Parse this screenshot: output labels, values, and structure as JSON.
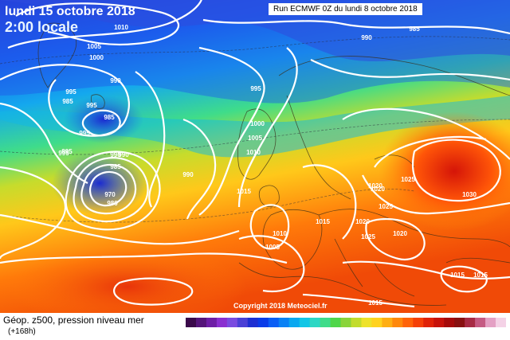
{
  "header": {
    "date": "lundi 15 octobre 2018",
    "time": "2:00 locale",
    "run": "Run ECMWF 0Z du lundi 8 octobre 2018"
  },
  "copyright": "Copyright 2018 Meteociel.fr",
  "legend": {
    "title": "Géop. z500, pression niveau mer",
    "subtitle": "(+168h)"
  },
  "isobar_labels": [
    "1010",
    "1005",
    "1000",
    "990",
    "995",
    "985",
    "995",
    "990",
    "985",
    "995",
    "990",
    "995",
    "985",
    "990",
    "970",
    "980",
    "995",
    "1000",
    "1005",
    "1010",
    "1015",
    "990",
    "985",
    "995",
    "1020",
    "1025",
    "1030",
    "1020",
    "1025",
    "1020",
    "1010",
    "1005",
    "1015",
    "1020",
    "1025",
    "1015",
    "1015",
    "1015"
  ],
  "colors": {
    "legend_scale": [
      "#3a0a4a",
      "#55157a",
      "#6e1ea6",
      "#8a2fd0",
      "#7a4be0",
      "#4a40d6",
      "#1d2fd2",
      "#0a3ce8",
      "#0a5ef5",
      "#0a82f5",
      "#0aa8f0",
      "#12c6e6",
      "#2cd7c4",
      "#3fdc8a",
      "#4fd64a",
      "#8ad43a",
      "#c2dc2c",
      "#eee22a",
      "#ffd21e",
      "#ffae12",
      "#ff880a",
      "#ff6308",
      "#f54007",
      "#e02207",
      "#c7120a",
      "#a50a0a",
      "#881010",
      "#a72a44",
      "#c55a83",
      "#e4a0c4",
      "#f4d2e6"
    ]
  }
}
